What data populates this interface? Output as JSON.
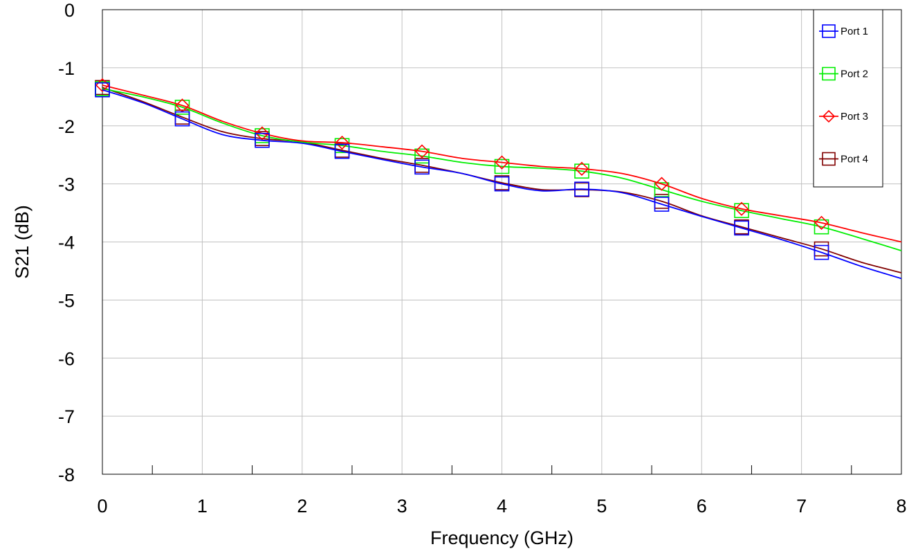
{
  "chart_data": {
    "type": "line",
    "xlabel": "Frequency (GHz)",
    "ylabel": "S21 (dB)",
    "xlim": [
      0,
      8
    ],
    "ylim": [
      -8,
      0
    ],
    "xticks": [
      "0",
      "1",
      "2",
      "3",
      "4",
      "5",
      "6",
      "7",
      "8"
    ],
    "yticks": [
      "0",
      "-1",
      "-2",
      "-3",
      "-4",
      "-5",
      "-6",
      "-7",
      "-8"
    ],
    "grid": true,
    "legend_position": "top-right",
    "series": [
      {
        "name": "Port 1",
        "color": "#0000ff",
        "marker": "square",
        "x": [
          0,
          0.4,
          0.8,
          1.2,
          1.6,
          2.0,
          2.4,
          2.8,
          3.2,
          3.6,
          4.0,
          4.4,
          4.8,
          5.2,
          5.6,
          6.0,
          6.4,
          6.8,
          7.2,
          7.6,
          8.0
        ],
        "y": [
          -1.38,
          -1.6,
          -1.88,
          -2.15,
          -2.25,
          -2.3,
          -2.44,
          -2.58,
          -2.71,
          -2.82,
          -3.0,
          -3.12,
          -3.09,
          -3.15,
          -3.35,
          -3.56,
          -3.76,
          -3.96,
          -4.18,
          -4.42,
          -4.63
        ],
        "marker_x": [
          0,
          0.8,
          1.6,
          2.4,
          3.2,
          4.0,
          4.8,
          5.6,
          6.4,
          7.2
        ]
      },
      {
        "name": "Port 2",
        "color": "#00ee00",
        "marker": "square",
        "x": [
          0,
          0.4,
          0.8,
          1.2,
          1.6,
          2.0,
          2.4,
          2.8,
          3.2,
          3.6,
          4.0,
          4.4,
          4.8,
          5.2,
          5.6,
          6.0,
          6.4,
          6.8,
          7.2,
          7.6,
          8.0
        ],
        "y": [
          -1.36,
          -1.5,
          -1.68,
          -1.95,
          -2.17,
          -2.28,
          -2.34,
          -2.44,
          -2.52,
          -2.63,
          -2.7,
          -2.73,
          -2.78,
          -2.9,
          -3.1,
          -3.3,
          -3.46,
          -3.6,
          -3.74,
          -3.94,
          -4.15
        ],
        "marker_x": [
          0,
          0.8,
          1.6,
          2.4,
          3.2,
          4.0,
          4.8,
          5.6,
          6.4,
          7.2
        ]
      },
      {
        "name": "Port 3",
        "color": "#ff0000",
        "marker": "diamond",
        "x": [
          0,
          0.4,
          0.8,
          1.2,
          1.6,
          2.0,
          2.4,
          2.8,
          3.2,
          3.6,
          4.0,
          4.4,
          4.8,
          5.2,
          5.6,
          6.0,
          6.4,
          6.8,
          7.2,
          7.6,
          8.0
        ],
        "y": [
          -1.3,
          -1.47,
          -1.65,
          -1.92,
          -2.13,
          -2.26,
          -2.29,
          -2.36,
          -2.44,
          -2.56,
          -2.63,
          -2.7,
          -2.74,
          -2.82,
          -3.0,
          -3.25,
          -3.43,
          -3.55,
          -3.67,
          -3.84,
          -4.0
        ],
        "marker_x": [
          0,
          0.8,
          1.6,
          2.4,
          3.2,
          4.0,
          4.8,
          5.6,
          6.4,
          7.2
        ]
      },
      {
        "name": "Port 4",
        "color": "#800000",
        "marker": "square",
        "x": [
          0,
          0.4,
          0.8,
          1.2,
          1.6,
          2.0,
          2.4,
          2.8,
          3.2,
          3.6,
          4.0,
          4.4,
          4.8,
          5.2,
          5.6,
          6.0,
          6.4,
          6.8,
          7.2,
          7.6,
          8.0
        ],
        "y": [
          -1.34,
          -1.58,
          -1.85,
          -2.1,
          -2.22,
          -2.28,
          -2.42,
          -2.56,
          -2.68,
          -2.82,
          -2.98,
          -3.1,
          -3.1,
          -3.14,
          -3.3,
          -3.55,
          -3.74,
          -3.93,
          -4.12,
          -4.35,
          -4.53
        ],
        "marker_x": [
          0,
          0.8,
          1.6,
          2.4,
          3.2,
          4.0,
          4.8,
          5.6,
          6.4,
          7.2
        ]
      }
    ]
  }
}
